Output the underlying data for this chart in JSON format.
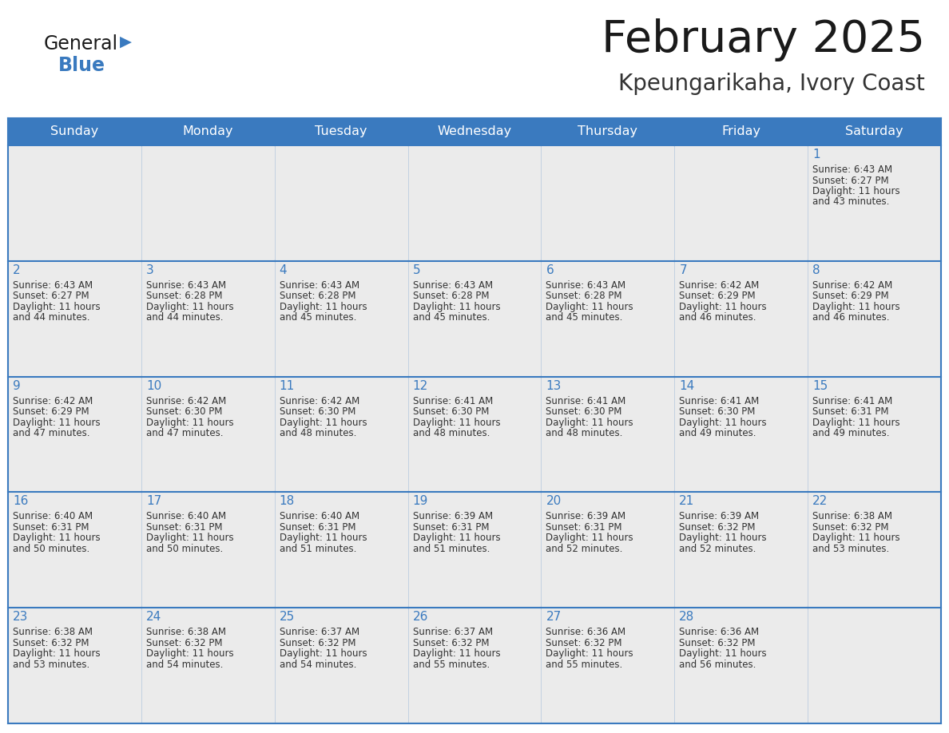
{
  "title": "February 2025",
  "subtitle": "Kpeungarikaha, Ivory Coast",
  "header_bg_color": "#3a7abf",
  "header_text_color": "#ffffff",
  "cell_bg_color": "#ebebeb",
  "grid_color": "#3a7abf",
  "day_headers": [
    "Sunday",
    "Monday",
    "Tuesday",
    "Wednesday",
    "Thursday",
    "Friday",
    "Saturday"
  ],
  "title_color": "#1a1a1a",
  "subtitle_color": "#333333",
  "day_number_color": "#3a7abf",
  "cell_text_color": "#333333",
  "weeks": [
    [
      null,
      null,
      null,
      null,
      null,
      null,
      1
    ],
    [
      2,
      3,
      4,
      5,
      6,
      7,
      8
    ],
    [
      9,
      10,
      11,
      12,
      13,
      14,
      15
    ],
    [
      16,
      17,
      18,
      19,
      20,
      21,
      22
    ],
    [
      23,
      24,
      25,
      26,
      27,
      28,
      null
    ]
  ],
  "cell_data": {
    "1": {
      "sunrise": "6:43 AM",
      "sunset": "6:27 PM",
      "daylight_hours": 11,
      "daylight_minutes": 43
    },
    "2": {
      "sunrise": "6:43 AM",
      "sunset": "6:27 PM",
      "daylight_hours": 11,
      "daylight_minutes": 44
    },
    "3": {
      "sunrise": "6:43 AM",
      "sunset": "6:28 PM",
      "daylight_hours": 11,
      "daylight_minutes": 44
    },
    "4": {
      "sunrise": "6:43 AM",
      "sunset": "6:28 PM",
      "daylight_hours": 11,
      "daylight_minutes": 45
    },
    "5": {
      "sunrise": "6:43 AM",
      "sunset": "6:28 PM",
      "daylight_hours": 11,
      "daylight_minutes": 45
    },
    "6": {
      "sunrise": "6:43 AM",
      "sunset": "6:28 PM",
      "daylight_hours": 11,
      "daylight_minutes": 45
    },
    "7": {
      "sunrise": "6:42 AM",
      "sunset": "6:29 PM",
      "daylight_hours": 11,
      "daylight_minutes": 46
    },
    "8": {
      "sunrise": "6:42 AM",
      "sunset": "6:29 PM",
      "daylight_hours": 11,
      "daylight_minutes": 46
    },
    "9": {
      "sunrise": "6:42 AM",
      "sunset": "6:29 PM",
      "daylight_hours": 11,
      "daylight_minutes": 47
    },
    "10": {
      "sunrise": "6:42 AM",
      "sunset": "6:30 PM",
      "daylight_hours": 11,
      "daylight_minutes": 47
    },
    "11": {
      "sunrise": "6:42 AM",
      "sunset": "6:30 PM",
      "daylight_hours": 11,
      "daylight_minutes": 48
    },
    "12": {
      "sunrise": "6:41 AM",
      "sunset": "6:30 PM",
      "daylight_hours": 11,
      "daylight_minutes": 48
    },
    "13": {
      "sunrise": "6:41 AM",
      "sunset": "6:30 PM",
      "daylight_hours": 11,
      "daylight_minutes": 48
    },
    "14": {
      "sunrise": "6:41 AM",
      "sunset": "6:30 PM",
      "daylight_hours": 11,
      "daylight_minutes": 49
    },
    "15": {
      "sunrise": "6:41 AM",
      "sunset": "6:31 PM",
      "daylight_hours": 11,
      "daylight_minutes": 49
    },
    "16": {
      "sunrise": "6:40 AM",
      "sunset": "6:31 PM",
      "daylight_hours": 11,
      "daylight_minutes": 50
    },
    "17": {
      "sunrise": "6:40 AM",
      "sunset": "6:31 PM",
      "daylight_hours": 11,
      "daylight_minutes": 50
    },
    "18": {
      "sunrise": "6:40 AM",
      "sunset": "6:31 PM",
      "daylight_hours": 11,
      "daylight_minutes": 51
    },
    "19": {
      "sunrise": "6:39 AM",
      "sunset": "6:31 PM",
      "daylight_hours": 11,
      "daylight_minutes": 51
    },
    "20": {
      "sunrise": "6:39 AM",
      "sunset": "6:31 PM",
      "daylight_hours": 11,
      "daylight_minutes": 52
    },
    "21": {
      "sunrise": "6:39 AM",
      "sunset": "6:32 PM",
      "daylight_hours": 11,
      "daylight_minutes": 52
    },
    "22": {
      "sunrise": "6:38 AM",
      "sunset": "6:32 PM",
      "daylight_hours": 11,
      "daylight_minutes": 53
    },
    "23": {
      "sunrise": "6:38 AM",
      "sunset": "6:32 PM",
      "daylight_hours": 11,
      "daylight_minutes": 53
    },
    "24": {
      "sunrise": "6:38 AM",
      "sunset": "6:32 PM",
      "daylight_hours": 11,
      "daylight_minutes": 54
    },
    "25": {
      "sunrise": "6:37 AM",
      "sunset": "6:32 PM",
      "daylight_hours": 11,
      "daylight_minutes": 54
    },
    "26": {
      "sunrise": "6:37 AM",
      "sunset": "6:32 PM",
      "daylight_hours": 11,
      "daylight_minutes": 55
    },
    "27": {
      "sunrise": "6:36 AM",
      "sunset": "6:32 PM",
      "daylight_hours": 11,
      "daylight_minutes": 55
    },
    "28": {
      "sunrise": "6:36 AM",
      "sunset": "6:32 PM",
      "daylight_hours": 11,
      "daylight_minutes": 56
    }
  },
  "logo_general_color": "#1a1a1a",
  "logo_blue_color": "#3a7abf",
  "fig_bg_color": "#ffffff",
  "fig_width": 11.88,
  "fig_height": 9.18,
  "dpi": 100
}
